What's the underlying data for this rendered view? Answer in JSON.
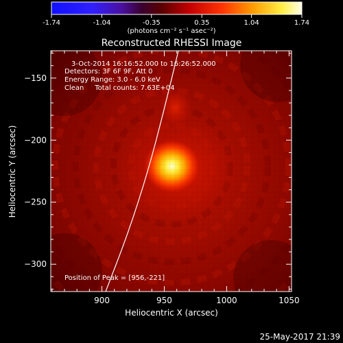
{
  "colorbar": {
    "tick_labels": [
      "-1.74",
      "-1.04",
      "-0.35",
      "0.35",
      "1.04",
      "1.74"
    ],
    "range": [
      -1.74,
      1.74
    ],
    "unit_label": "(photons cm⁻² s⁻¹ asec⁻²)"
  },
  "title": "Reconstructed RHESSI Image",
  "info": {
    "time_range": "3-Oct-2014 16:16:52.000 to 16:26:52.000",
    "detectors": "Detectors: 3F 6F 9F, Att 0",
    "energy_range": "Energy Range: 3.0 - 6.0 keV",
    "clean_counts": "Clean     Total counts: 7.63E+04"
  },
  "peak_label": "Position of Peak = [956,-221]",
  "footer_timestamp": "25-May-2017 21:39",
  "chart_data": {
    "type": "heatmap",
    "title": "Reconstructed RHESSI Image",
    "xlabel": "Heliocentric X (arcsec)",
    "ylabel": "Heliocentric Y (arcsec)",
    "xlim": [
      859,
      1052
    ],
    "ylim": [
      -322,
      -128
    ],
    "x_ticks": [
      900,
      950,
      1000,
      1050
    ],
    "y_ticks": [
      -150,
      -200,
      -250,
      -300
    ],
    "x_tick_labels": [
      "900",
      "950",
      "1000",
      "1050"
    ],
    "y_tick_labels": [
      "−150",
      "−200",
      "−250",
      "−300"
    ],
    "peak_position": [
      956,
      -221
    ],
    "secondary_source": [
      959,
      -174
    ],
    "colormap": "red-temperature",
    "limb_points": [
      [
        903,
        -322
      ],
      [
        921,
        -275
      ],
      [
        937,
        -225
      ],
      [
        950,
        -175
      ],
      [
        962,
        -125
      ]
    ]
  }
}
